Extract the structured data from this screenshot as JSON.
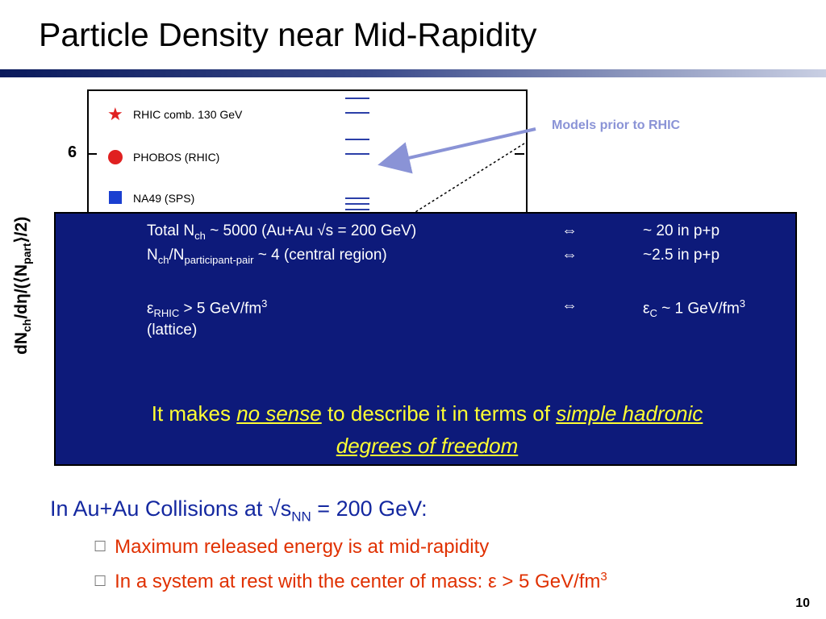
{
  "slide": {
    "title": "Particle Density near Mid-Rapidity",
    "page_number": "10"
  },
  "figure": {
    "y_tick_label": "6",
    "ylabel_main": "dN",
    "ylabel_sub1": "ch",
    "ylabel_mid": "/dη/(⟨N",
    "ylabel_sub2": "part",
    "ylabel_end": "⟩/2)",
    "legend": [
      {
        "label": "RHIC comb. 130 GeV",
        "symbol": "star-icon",
        "color": "#e02020"
      },
      {
        "label": "PHOBOS (RHIC)",
        "symbol": "circle-icon",
        "color": "#e02020"
      },
      {
        "label": "NA49 (SPS)",
        "symbol": "square-icon",
        "color": "#1a3fd0"
      }
    ],
    "callout": "Models prior to RHIC"
  },
  "info_box": {
    "row1_left_a": "Total N",
    "row1_left_sub": "ch",
    "row1_left_b": " ~ 5000 (Au+Au √s = 200 GeV)",
    "row1_arrow": "⇔",
    "row1_right": "~ 20 in p+p",
    "row2_left_a": "N",
    "row2_left_sub1": "ch",
    "row2_left_b": "/N",
    "row2_left_sub2": "participant-pair",
    "row2_left_c": " ~ 4  (central region)",
    "row2_arrow": "⇔",
    "row2_right": "~2.5 in p+p",
    "row3_left_a": "ε",
    "row3_left_sub": "RHIC",
    "row3_left_b": " > 5 GeV/fm",
    "row3_left_sup": "3",
    "row3_arrow": "⇔",
    "row3_right_a": "ε",
    "row3_right_sub": "C",
    "row3_right_b": " ~ 1 GeV/fm",
    "row3_right_sup": "3",
    "row4_left": "(lattice)",
    "statement_a": "It makes ",
    "statement_em1": "no sense",
    "statement_b": " to describe it in terms of ",
    "statement_em2": "simple hadronic",
    "statement_em3": "degrees of freedom",
    "colors": {
      "background": "#0d1a7a",
      "highlight": "#ffff33"
    }
  },
  "bullets": {
    "main_a": "In Au+Au Collisions at √s",
    "main_sub": "NN",
    "main_b": " = 200 GeV:",
    "sub1": "Maximum released energy is at mid-rapidity",
    "sub2_a": "In a system at rest with the center of mass: ε > 5 GeV/fm",
    "sub2_sup": "3",
    "bullet_icon": "square-bullet-icon"
  }
}
